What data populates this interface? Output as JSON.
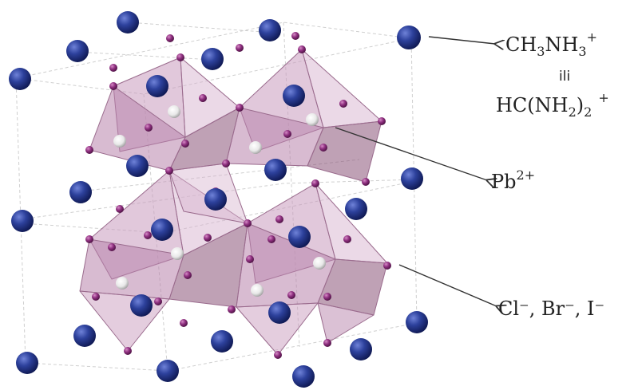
{
  "labels": {
    "cation_a_pre": "CH",
    "cation_a_sub1": "3",
    "cation_a_mid": "NH",
    "cation_a_sub2": "3",
    "cation_a_sup": "+",
    "or_word": "ili",
    "cation_b_pre": "HC(NH",
    "cation_b_sub1": "2",
    "cation_b_mid": ")",
    "cation_b_sub2": "2",
    "cation_b_sup": "+",
    "lead_base": "Pb",
    "lead_sup": "2+",
    "halides": "Cl⁻, Br⁻, I⁻"
  },
  "colors": {
    "a_site": "#2a3d96",
    "b_site": "#ffffff",
    "x_site": "#8e2f7f",
    "octahedron": "#c99bbe",
    "octahedron_dark": "#8a5479",
    "cell_lines": "#cfcfcf",
    "arrow": "#333333"
  }
}
